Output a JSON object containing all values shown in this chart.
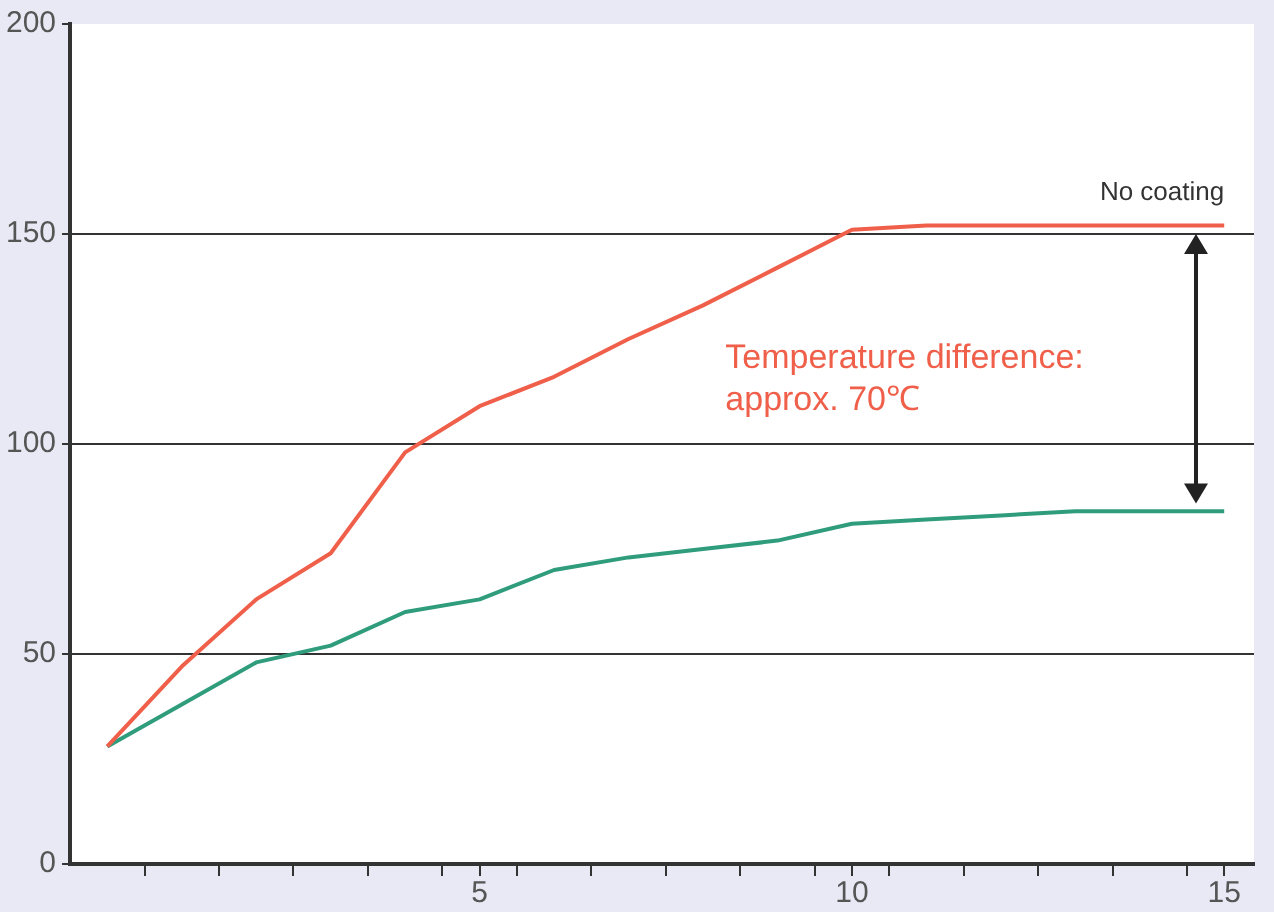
{
  "chart_data": {
    "type": "line",
    "x": [
      0,
      1,
      2,
      3,
      4,
      5,
      6,
      7,
      8,
      9,
      10,
      11,
      12,
      13,
      14,
      15
    ],
    "series": [
      {
        "name": "No coating",
        "color": "#ef5f4a",
        "values": [
          28,
          47,
          63,
          74,
          98,
          109,
          116,
          125,
          133,
          142,
          151,
          152,
          152,
          152,
          152,
          152
        ]
      },
      {
        "color": "#2f9c7c",
        "values": [
          28,
          38,
          48,
          52,
          60,
          63,
          70,
          73,
          75,
          77,
          81,
          82,
          83,
          84,
          84,
          84
        ]
      }
    ],
    "xlim": [
      -0.5,
      15.4
    ],
    "xticks": [
      {
        "value": 0.5,
        "label": null
      },
      {
        "value": 1.5,
        "label": null
      },
      {
        "value": 2.5,
        "label": null
      },
      {
        "value": 3.5,
        "label": null
      },
      {
        "value": 4.5,
        "label": null
      },
      5,
      {
        "value": 5.5,
        "label": null
      },
      {
        "value": 6.5,
        "label": null
      },
      {
        "value": 7.5,
        "label": null
      },
      {
        "value": 8.5,
        "label": null
      },
      {
        "value": 9.5,
        "label": null
      },
      10,
      {
        "value": 10.5,
        "label": null
      },
      {
        "value": 11.5,
        "label": null
      },
      {
        "value": 12.5,
        "label": null
      },
      {
        "value": 13.5,
        "label": null
      },
      {
        "value": 14.5,
        "label": null
      },
      15
    ],
    "ylim": [
      0,
      200
    ],
    "yticks": [
      0,
      50,
      100,
      150,
      200
    ],
    "grid": "y",
    "legend": false,
    "marker": "none",
    "line_style": "solid",
    "annotations": [
      "Temperature difference:\napprox. 70℃"
    ]
  }
}
